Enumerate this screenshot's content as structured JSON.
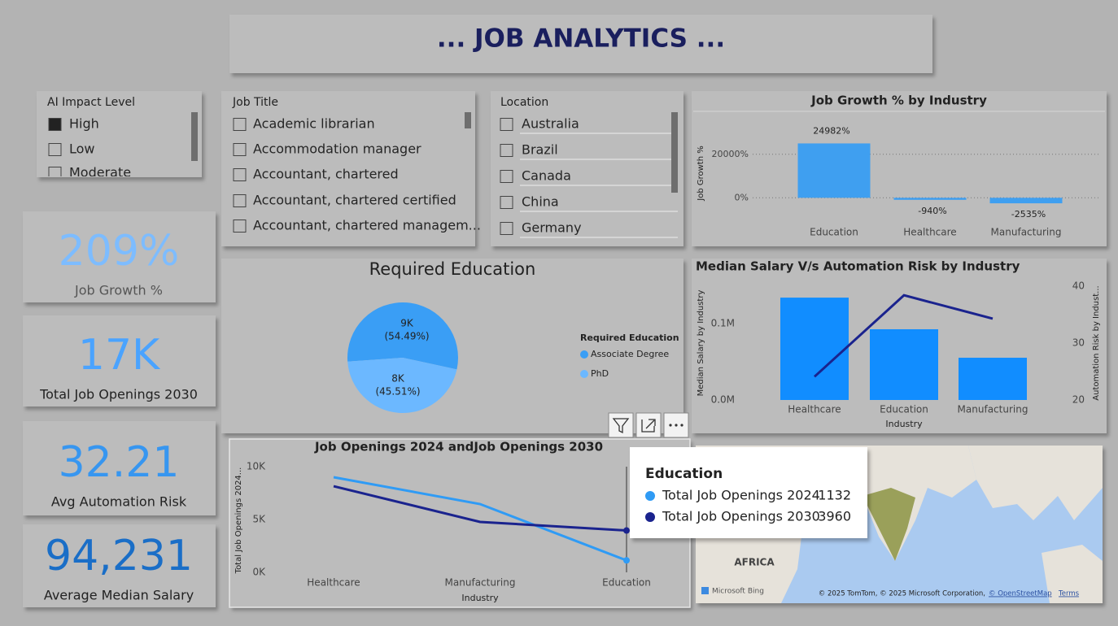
{
  "header": {
    "title": "... JOB ANALYTICS ..."
  },
  "slicers": [
    {
      "title": "AI Impact Level",
      "items": [
        "High",
        "Low",
        "Moderate"
      ],
      "selected": [
        true,
        false,
        false
      ]
    },
    {
      "title": "Job Title",
      "items": [
        "Academic librarian",
        "Accommodation manager",
        "Accountant, chartered",
        "Accountant, chartered certified",
        "Accountant, chartered managem..."
      ],
      "selected": [
        false,
        false,
        false,
        false,
        false
      ]
    },
    {
      "title": "Location",
      "items": [
        "Australia",
        "Brazil",
        "Canada",
        "China",
        "Germany"
      ],
      "selected": [
        false,
        false,
        false,
        false,
        false
      ]
    }
  ],
  "cards": [
    {
      "value": "209%",
      "label": "Job Growth %",
      "color": "#7dbcff"
    },
    {
      "value": "17K",
      "label": "Total Job Openings 2030",
      "color": "#4aa3ff"
    },
    {
      "value": "32.21",
      "label": "Avg Automation Risk",
      "color": "#3796f0"
    },
    {
      "value": "94,231",
      "label": "Average Median Salary",
      "color": "#1a6ec7"
    }
  ],
  "chart_data": [
    {
      "type": "bar",
      "title": "Job Growth % by Industry",
      "y_label": "Job Growth %",
      "categories": [
        "Education",
        "Healthcare",
        "Manufacturing"
      ],
      "values": [
        24982,
        -940,
        -2535
      ],
      "value_labels": [
        "24982%",
        "-940%",
        "-2535%"
      ],
      "color": "#3f9ff0",
      "ylim": [
        -4000,
        30000
      ],
      "yticks": [
        {
          "value": 0,
          "label": "0%"
        },
        {
          "value": 20000,
          "label": "20000%"
        }
      ],
      "grid": true
    },
    {
      "type": "pie",
      "title": "Required Education",
      "legend_title": "Required Education",
      "categories": [
        "Associate Degree",
        "PhD"
      ],
      "values": [
        54.49,
        45.51
      ],
      "value_labels": [
        "(54.49%)",
        "(45.51%)"
      ],
      "counts": [
        9000,
        8000
      ],
      "count_labels": [
        "9K",
        "8K"
      ],
      "colors": [
        "#3a9ef5",
        "#6cb8ff"
      ]
    },
    {
      "type": "combo",
      "title": "Median Salary V/s Automation Risk by Industry",
      "x_label": "Industry",
      "y_label": "Median Salary by Industry",
      "y2_label": "Automation Risk by Indust...",
      "categories": [
        "Healthcare",
        "Education",
        "Manufacturing"
      ],
      "series": [
        {
          "name": "Median Salary by Industry",
          "kind": "bar",
          "color": "#118dff",
          "values": [
            134000,
            92600,
            55300
          ]
        },
        {
          "name": "Automation Risk by Industry",
          "kind": "line",
          "axis": "y2",
          "color": "#1a238e",
          "values": [
            24.1,
            38.4,
            34.3
          ]
        }
      ],
      "ylim": [
        0,
        149000
      ],
      "yticks": [
        {
          "value": 0,
          "label": "0.0M"
        },
        {
          "value": 100000,
          "label": "0.1M"
        }
      ],
      "y2lim": [
        20,
        40
      ],
      "y2ticks": [
        20,
        30,
        40
      ]
    },
    {
      "type": "line",
      "title": "Job Openings 2024 andJob Openings 2030",
      "x_label": "Industry",
      "y_label": "Total Job Openings 2024...",
      "categories": [
        "Healthcare",
        "Manufacturing",
        "Education"
      ],
      "series": [
        {
          "name": "Total Job Openings 2024",
          "color": "#2f9bf5",
          "values": [
            9000,
            6460,
            1132
          ]
        },
        {
          "name": "Total Job Openings 2030",
          "color": "#1a238e",
          "values": [
            8150,
            4770,
            3960
          ]
        }
      ],
      "ylim": [
        0,
        10000
      ],
      "yticks": [
        {
          "value": 0,
          "label": "0K"
        },
        {
          "value": 5000,
          "label": "5K"
        },
        {
          "value": 10000,
          "label": "10K"
        }
      ],
      "tooltip_index": 2
    }
  ],
  "map": {
    "region_label": "AFRICA",
    "logo": "Microsoft Bing",
    "attribution": "© 2025 TomTom, © 2025 Microsoft Corporation,",
    "osm": "© OpenStreetMap",
    "terms": "Terms"
  }
}
